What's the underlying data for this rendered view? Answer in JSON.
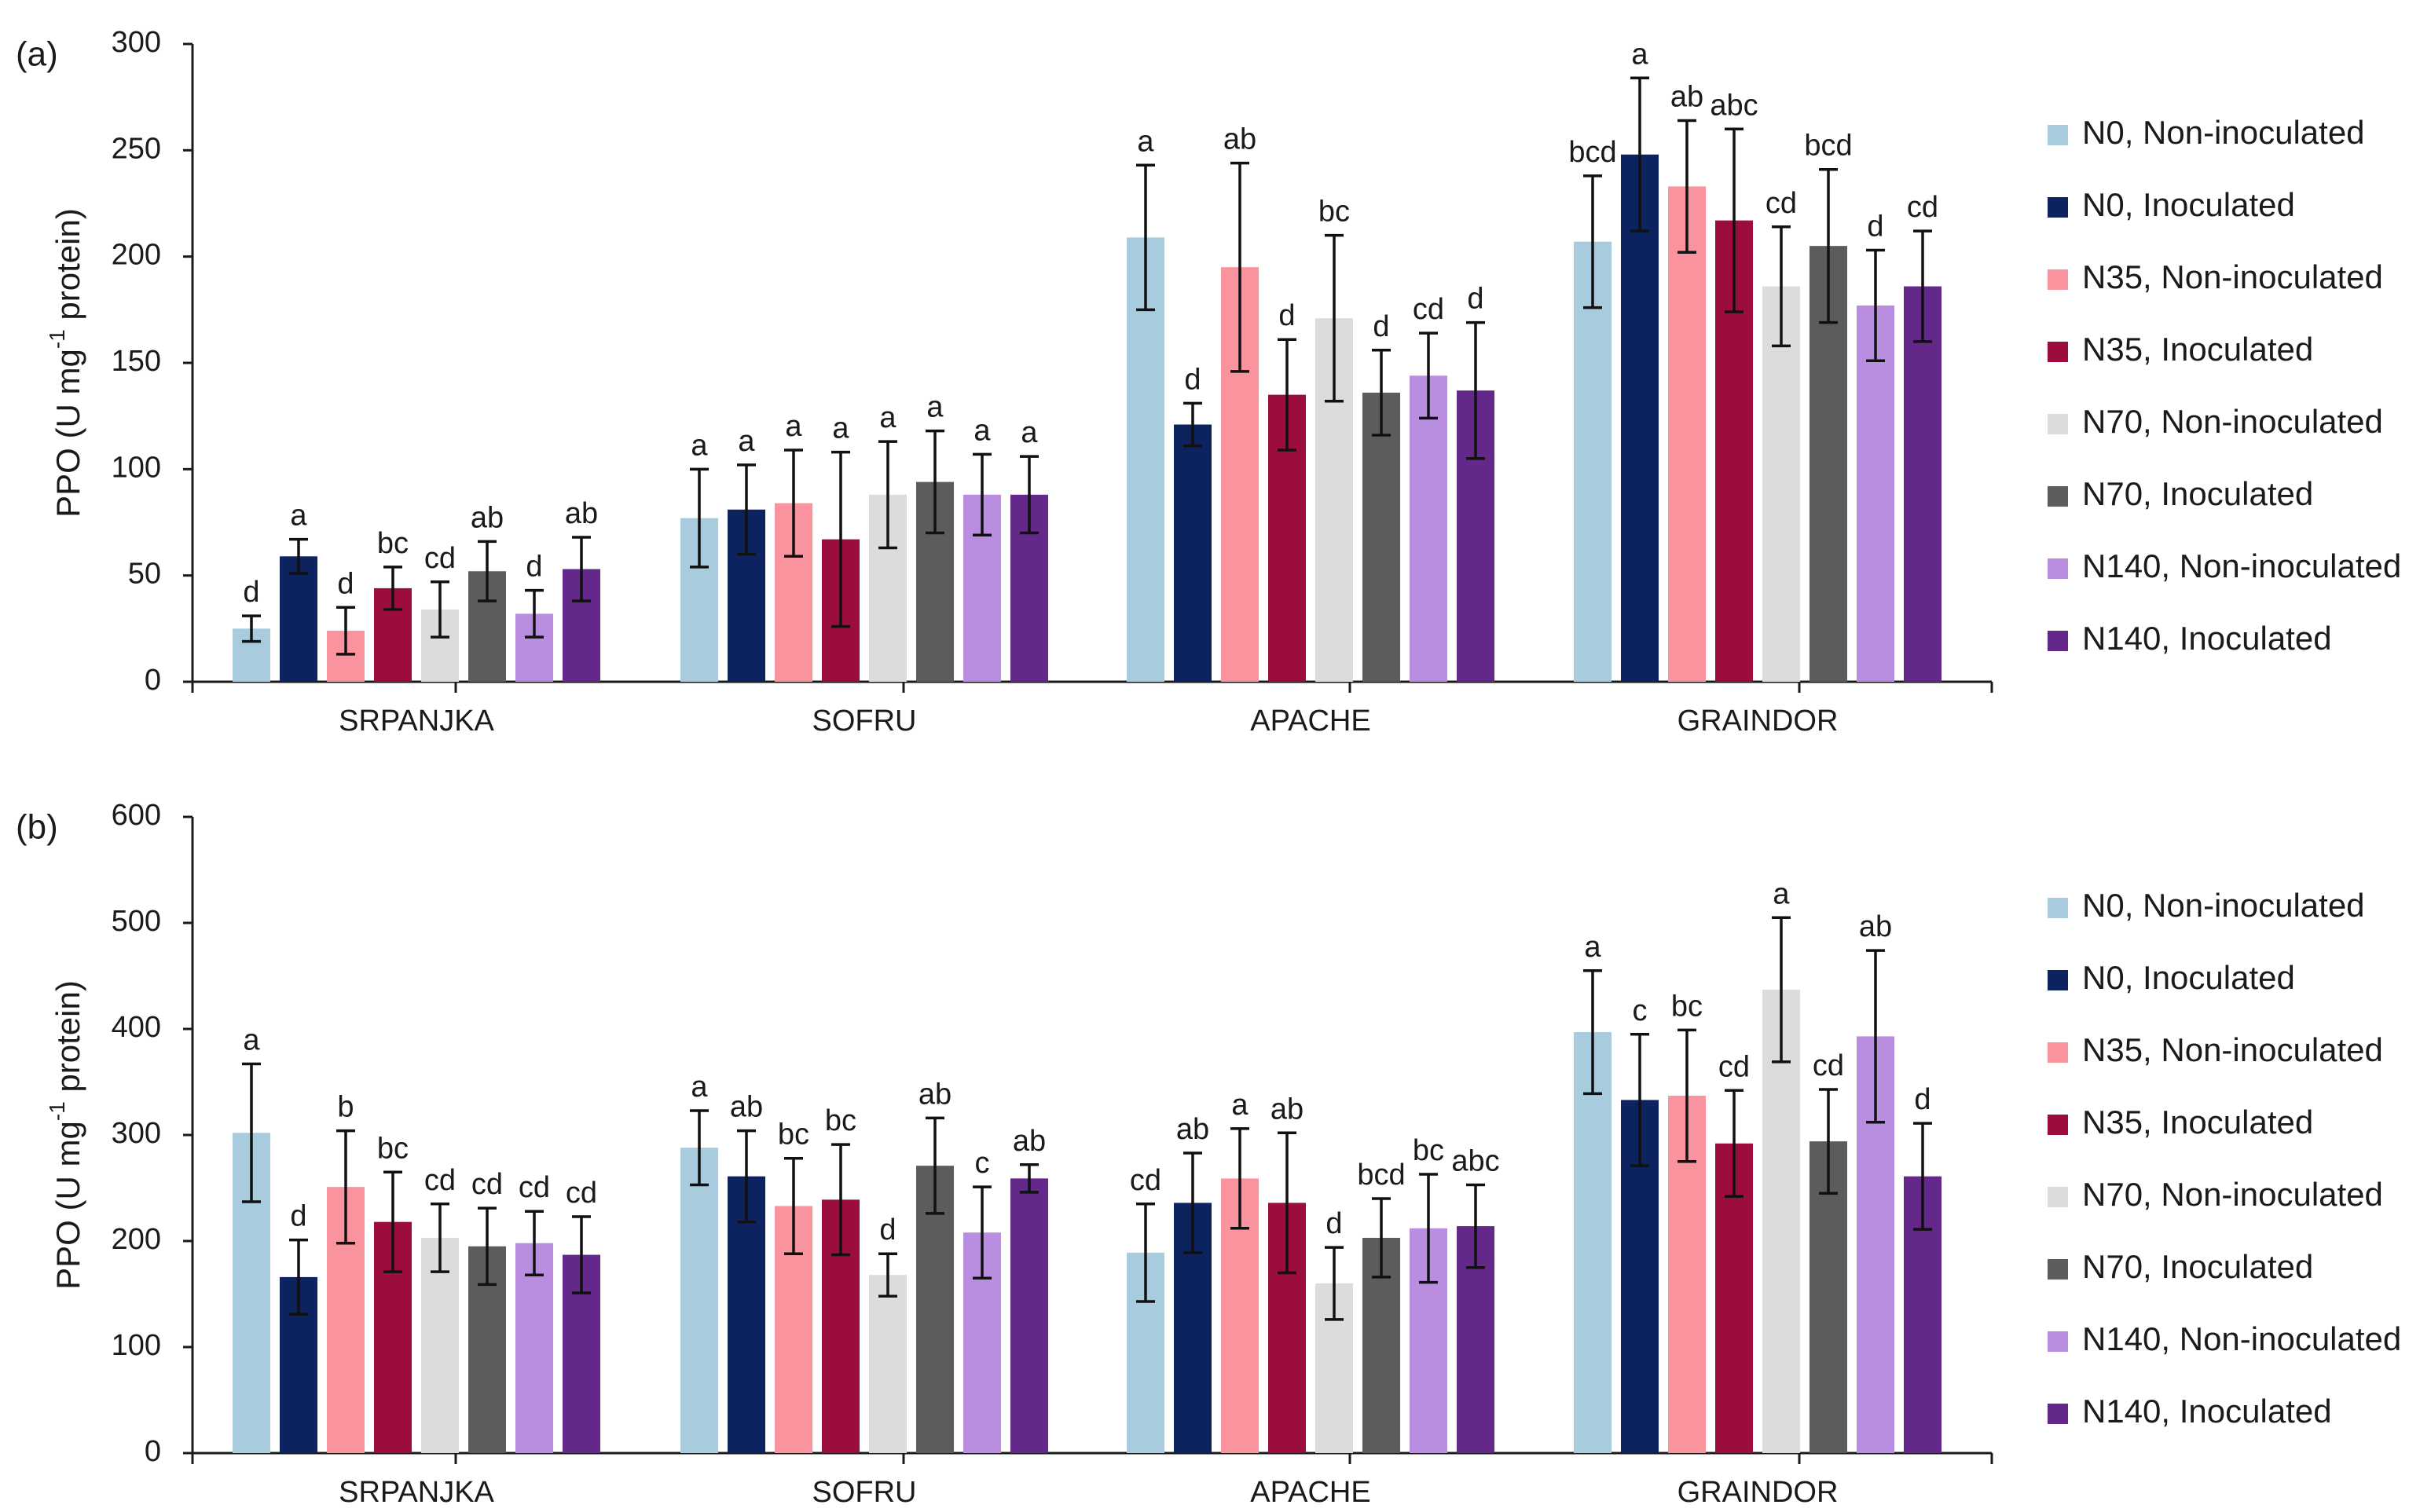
{
  "legend": [
    {
      "name": "N0, Non-inoculated",
      "color": "#a9cbde"
    },
    {
      "name": "N0, Inoculated",
      "color": "#0c2360"
    },
    {
      "name": "N35, Non-inoculated",
      "color": "#f9949f"
    },
    {
      "name": "N35, Inoculated",
      "color": "#9b0c3f"
    },
    {
      "name": "N70, Non-inoculated",
      "color": "#dcdcdc"
    },
    {
      "name": "N70, Inoculated",
      "color": "#5c5c5c"
    },
    {
      "name": "N140, Non-inoculated",
      "color": "#b98ee0"
    },
    {
      "name": "N140, Inoculated",
      "color": "#63288a"
    }
  ],
  "chart_data": [
    {
      "type": "bar",
      "panel": "(a)",
      "ylabel": "PPO (U mg",
      "ylabel_sup": "-1",
      "ylabel_end": " protein)",
      "ylim": [
        0,
        300
      ],
      "yticks": [
        0,
        50,
        100,
        150,
        200,
        250,
        300
      ],
      "categories": [
        "SRPANJKA",
        "SOFRU",
        "APACHE",
        "GRAINDOR"
      ],
      "series": [
        {
          "name": "N0, Non-inoculated",
          "values": [
            25,
            77,
            209,
            207
          ],
          "errors": [
            6,
            23,
            34,
            31
          ],
          "letters": [
            "d",
            "a",
            "a",
            "bcd"
          ]
        },
        {
          "name": "N0, Inoculated",
          "values": [
            59,
            81,
            121,
            248
          ],
          "errors": [
            8,
            21,
            10,
            36
          ],
          "letters": [
            "a",
            "a",
            "d",
            "a"
          ]
        },
        {
          "name": "N35, Non-inoculated",
          "values": [
            24,
            84,
            195,
            233
          ],
          "errors": [
            11,
            25,
            49,
            31
          ],
          "letters": [
            "d",
            "a",
            "ab",
            "ab"
          ]
        },
        {
          "name": "N35, Inoculated",
          "values": [
            44,
            67,
            135,
            217
          ],
          "errors": [
            10,
            41,
            26,
            43
          ],
          "letters": [
            "bc",
            "a",
            "d",
            "abc"
          ]
        },
        {
          "name": "N70, Non-inoculated",
          "values": [
            34,
            88,
            171,
            186
          ],
          "errors": [
            13,
            25,
            39,
            28
          ],
          "letters": [
            "cd",
            "a",
            "bc",
            "cd"
          ]
        },
        {
          "name": "N70, Inoculated",
          "values": [
            52,
            94,
            136,
            205
          ],
          "errors": [
            14,
            24,
            20,
            36
          ],
          "letters": [
            "ab",
            "a",
            "d",
            "bcd"
          ]
        },
        {
          "name": "N140, Non-inoculated",
          "values": [
            32,
            88,
            144,
            177
          ],
          "errors": [
            11,
            19,
            20,
            26
          ],
          "letters": [
            "d",
            "a",
            "cd",
            "d"
          ]
        },
        {
          "name": "N140, Inoculated",
          "values": [
            53,
            88,
            137,
            186
          ],
          "errors": [
            15,
            18,
            32,
            26
          ],
          "letters": [
            "ab",
            "a",
            "d",
            "cd"
          ]
        }
      ]
    },
    {
      "type": "bar",
      "panel": "(b)",
      "ylabel": "PPO (U mg",
      "ylabel_sup": "-1",
      "ylabel_end": " protein)",
      "ylim": [
        0,
        600
      ],
      "yticks": [
        0,
        100,
        200,
        300,
        400,
        500,
        600
      ],
      "categories": [
        "SRPANJKA",
        "SOFRU",
        "APACHE",
        "GRAINDOR"
      ],
      "series": [
        {
          "name": "N0, Non-inoculated",
          "values": [
            302,
            288,
            189,
            397
          ],
          "errors": [
            65,
            35,
            46,
            58
          ],
          "letters": [
            "a",
            "a",
            "cd",
            "a"
          ]
        },
        {
          "name": "N0, Inoculated",
          "values": [
            166,
            261,
            236,
            333
          ],
          "errors": [
            35,
            43,
            47,
            62
          ],
          "letters": [
            "d",
            "ab",
            "ab",
            "c"
          ]
        },
        {
          "name": "N35, Non-inoculated",
          "values": [
            251,
            233,
            259,
            337
          ],
          "errors": [
            53,
            45,
            47,
            62
          ],
          "letters": [
            "b",
            "bc",
            "a",
            "bc"
          ]
        },
        {
          "name": "N35, Inoculated",
          "values": [
            218,
            239,
            236,
            292
          ],
          "errors": [
            47,
            52,
            66,
            50
          ],
          "letters": [
            "bc",
            "bc",
            "ab",
            "cd"
          ]
        },
        {
          "name": "N70, Non-inoculated",
          "values": [
            203,
            168,
            160,
            437
          ],
          "errors": [
            32,
            20,
            34,
            68
          ],
          "letters": [
            "cd",
            "d",
            "d",
            "a"
          ]
        },
        {
          "name": "N70, Inoculated",
          "values": [
            195,
            271,
            203,
            294
          ],
          "errors": [
            36,
            45,
            37,
            49
          ],
          "letters": [
            "cd",
            "ab",
            "bcd",
            "cd"
          ]
        },
        {
          "name": "N140, Non-inoculated",
          "values": [
            198,
            208,
            212,
            393
          ],
          "errors": [
            30,
            43,
            51,
            81
          ],
          "letters": [
            "cd",
            "c",
            "bc",
            "ab"
          ]
        },
        {
          "name": "N140, Inoculated",
          "values": [
            187,
            259,
            214,
            261
          ],
          "errors": [
            36,
            13,
            39,
            50
          ],
          "letters": [
            "cd",
            "ab",
            "abc",
            "d"
          ]
        }
      ]
    }
  ]
}
